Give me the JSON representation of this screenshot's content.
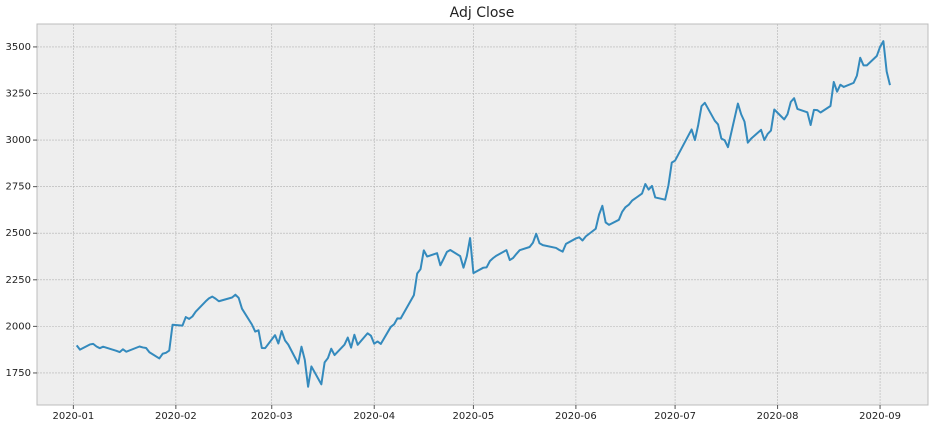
{
  "chart_data": {
    "type": "line",
    "title": "Adj Close",
    "color": "#348ABD",
    "grid": true,
    "x": [
      1,
      2,
      5,
      6,
      7,
      8,
      9,
      13,
      14,
      15,
      16,
      20,
      21,
      22,
      23,
      26,
      27,
      28,
      29,
      30,
      33,
      34,
      35,
      36,
      37,
      40,
      41,
      42,
      43,
      44,
      48,
      49,
      50,
      51,
      54,
      55,
      56,
      57,
      58,
      61,
      62,
      63,
      64,
      65,
      68,
      69,
      70,
      71,
      72,
      75,
      76,
      77,
      78,
      79,
      82,
      83,
      84,
      85,
      86,
      89,
      90,
      91,
      92,
      93,
      96,
      97,
      98,
      99,
      103,
      104,
      105,
      106,
      107,
      110,
      111,
      112,
      113,
      114,
      117,
      118,
      119,
      120,
      121,
      124,
      125,
      126,
      127,
      128,
      131,
      132,
      133,
      134,
      135,
      138,
      139,
      140,
      141,
      142,
      146,
      147,
      148,
      149,
      152,
      153,
      154,
      155,
      158,
      159,
      160,
      161,
      162,
      165,
      166,
      167,
      168,
      169,
      172,
      173,
      174,
      175,
      176,
      179,
      180,
      181,
      182,
      187,
      188,
      189,
      190,
      191,
      194,
      195,
      196,
      197,
      198,
      201,
      202,
      203,
      204,
      205,
      208,
      209,
      210,
      211,
      212,
      215,
      216,
      217,
      218,
      219,
      222,
      223,
      224,
      225,
      226,
      229,
      230,
      231,
      232,
      233,
      236,
      237,
      238,
      239,
      240,
      243,
      244,
      245,
      246,
      247
    ],
    "values": [
      1898,
      1875,
      1903,
      1906,
      1892,
      1883,
      1891,
      1869,
      1862,
      1877,
      1864,
      1892,
      1887,
      1884,
      1861,
      1828,
      1853,
      1858,
      1870,
      2009,
      2004,
      2050,
      2040,
      2053,
      2079,
      2134,
      2150,
      2160,
      2149,
      2135,
      2155,
      2170,
      2153,
      2095,
      2010,
      1972,
      1979,
      1884,
      1883,
      1953,
      1908,
      1975,
      1925,
      1902,
      1800,
      1891,
      1820,
      1676,
      1785,
      1689,
      1807,
      1830,
      1880,
      1846,
      1902,
      1940,
      1886,
      1955,
      1901,
      1963,
      1950,
      1907,
      1919,
      1906,
      1997,
      2011,
      2043,
      2042,
      2168,
      2284,
      2307,
      2408,
      2375,
      2393,
      2328,
      2363,
      2400,
      2410,
      2377,
      2315,
      2376,
      2474,
      2286,
      2315,
      2317,
      2351,
      2367,
      2380,
      2409,
      2356,
      2367,
      2389,
      2409,
      2426,
      2449,
      2497,
      2446,
      2436,
      2421,
      2410,
      2401,
      2443,
      2472,
      2478,
      2461,
      2483,
      2524,
      2600,
      2647,
      2558,
      2545,
      2572,
      2615,
      2640,
      2653,
      2675,
      2713,
      2764,
      2734,
      2754,
      2692,
      2680,
      2758,
      2879,
      2890,
      3057,
      3000,
      3081,
      3182,
      3200,
      3104,
      3084,
      3008,
      2999,
      2962,
      3196,
      3138,
      3099,
      2986,
      3008,
      3055,
      3000,
      3033,
      3051,
      3164,
      3111,
      3138,
      3205,
      3225,
      3167,
      3149,
      3081,
      3162,
      3161,
      3148,
      3183,
      3312,
      3260,
      3297,
      3285,
      3307,
      3346,
      3442,
      3401,
      3401,
      3451,
      3500,
      3531,
      3368,
      3295
    ],
    "xlim": [
      -11,
      258.5
    ],
    "xticks": [
      {
        "value": 0,
        "label": "2020-01"
      },
      {
        "value": 31,
        "label": "2020-02"
      },
      {
        "value": 60,
        "label": "2020-03"
      },
      {
        "value": 91,
        "label": "2020-04"
      },
      {
        "value": 121,
        "label": "2020-05"
      },
      {
        "value": 152,
        "label": "2020-06"
      },
      {
        "value": 182,
        "label": "2020-07"
      },
      {
        "value": 213,
        "label": "2020-08"
      },
      {
        "value": 244,
        "label": "2020-09"
      }
    ],
    "ylim": [
      1578,
      3623
    ],
    "yticks": [
      1750,
      2000,
      2250,
      2500,
      2750,
      3000,
      3250,
      3500
    ]
  }
}
